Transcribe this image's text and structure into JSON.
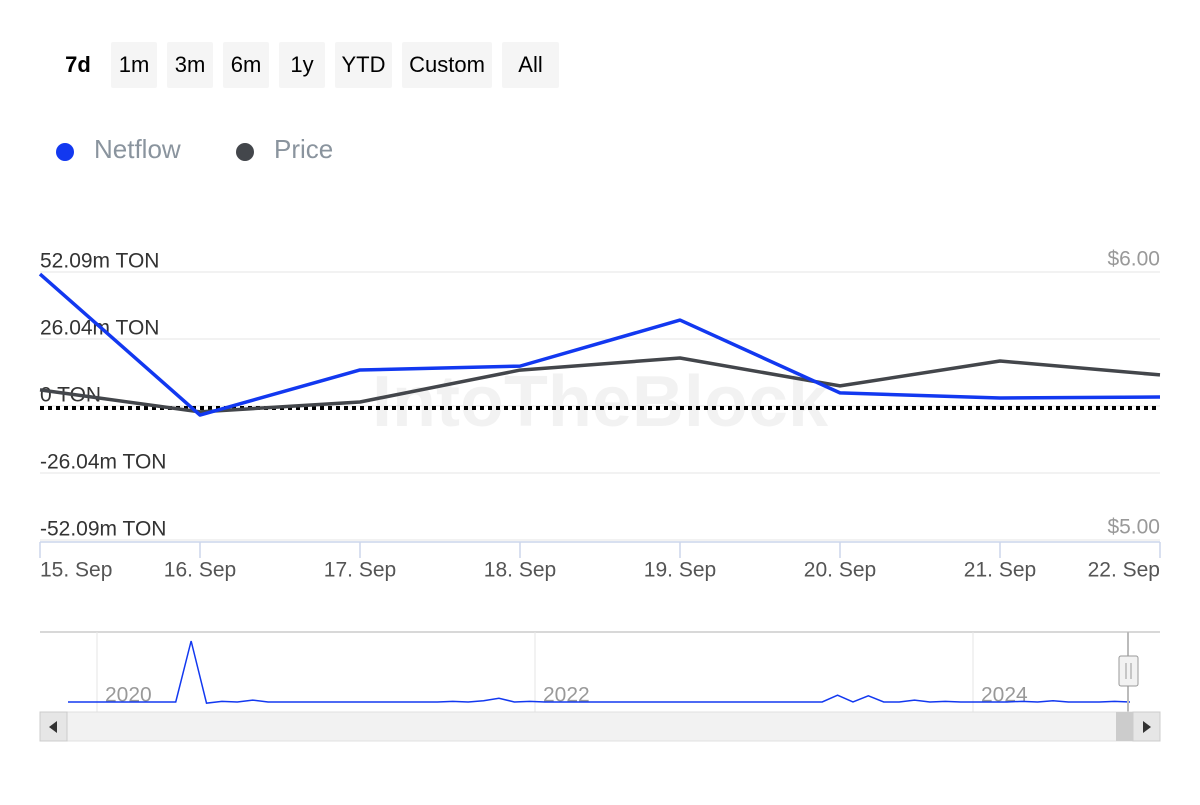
{
  "range_buttons": [
    "7d",
    "1m",
    "3m",
    "6m",
    "1y",
    "YTD",
    "Custom",
    "All"
  ],
  "selected_button": 0,
  "chart_data": {
    "type": "line",
    "watermark": "IntoTheBlock",
    "categories": [
      "15. Sep",
      "16. Sep",
      "17. Sep",
      "18. Sep",
      "19. Sep",
      "20. Sep",
      "21. Sep",
      "22. Sep"
    ],
    "series": [
      {
        "name": "Netflow",
        "color": "#1238f0",
        "values": [
          51.3,
          -3.5,
          14.0,
          15.5,
          33.4,
          5.1,
          3.1,
          3.5
        ]
      },
      {
        "name": "Price",
        "color": "#43464b",
        "axis": "y2",
        "values": [
          5.56,
          5.478,
          5.515,
          5.634,
          5.679,
          5.575,
          5.668,
          5.616
        ]
      }
    ],
    "ylim": [
      -52.09,
      52.09
    ],
    "yticks": [
      {
        "value": 52.09,
        "label": "52.09m TON"
      },
      {
        "value": 26.04,
        "label": "26.04m TON"
      },
      {
        "value": 0,
        "label": "0 TON"
      },
      {
        "value": -26.04,
        "label": "-26.04m TON"
      },
      {
        "value": -52.09,
        "label": "-52.09m TON"
      }
    ],
    "y2lim": [
      5,
      6
    ],
    "y2ticks": [
      {
        "value": 6,
        "label": "$6.00"
      },
      {
        "value": 5,
        "label": "$5.00"
      }
    ],
    "grid": true,
    "legend": "top-left",
    "navigator": {
      "labels": [
        "2020",
        "2022",
        "2024"
      ],
      "color": "#1238f0",
      "ylim": [
        -5,
        100
      ],
      "values": [
        0,
        0,
        0,
        0,
        0,
        0,
        0,
        0,
        100,
        -2,
        1,
        0,
        3,
        0,
        0,
        0,
        0,
        0,
        0,
        0,
        0,
        0,
        0,
        0,
        0,
        1,
        0,
        2,
        6,
        0,
        1,
        0,
        0,
        0,
        0,
        0,
        0,
        0,
        0,
        0,
        0,
        0,
        0,
        0,
        0,
        0,
        0,
        0,
        0,
        0,
        11,
        0,
        10,
        0,
        0,
        3,
        0,
        1,
        0,
        0,
        0,
        0,
        1,
        0,
        2,
        0,
        0,
        0,
        1,
        0
      ]
    }
  }
}
